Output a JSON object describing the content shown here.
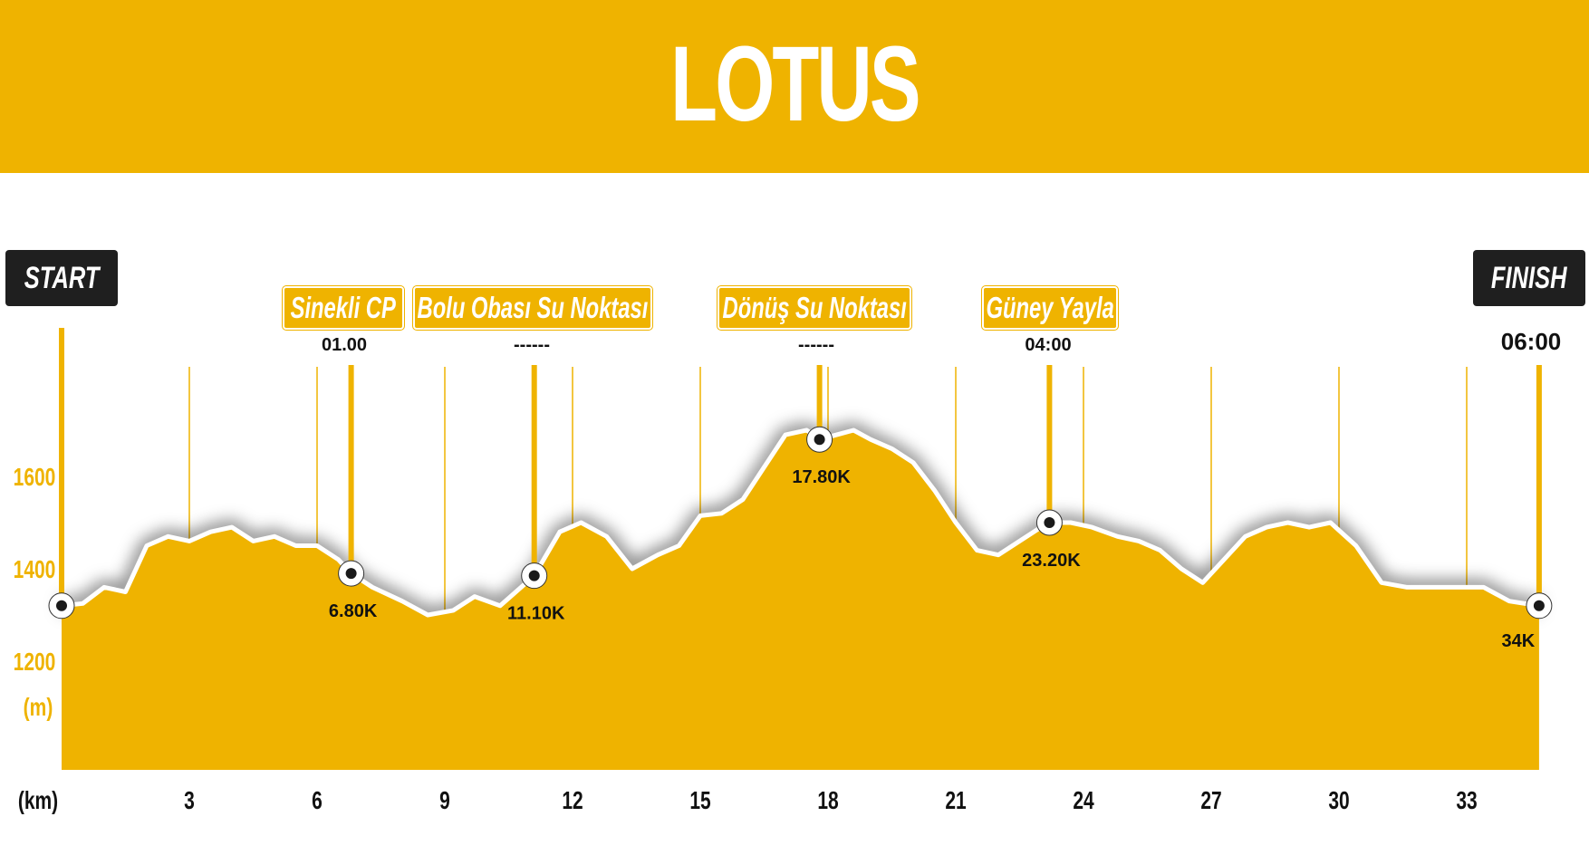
{
  "title": "LOTUS",
  "start_label": "START",
  "finish_label": "FINISH",
  "finish_time": "06:00",
  "colors": {
    "accent": "#efb300",
    "dark": "#1f1f1f",
    "line": "#ffffff",
    "text": "#111111"
  },
  "checkpoints": [
    {
      "name": "Sinekli CP",
      "time": "01.00",
      "km_label": "6.80K",
      "km": 6.8
    },
    {
      "name": "Bolu Obası Su Noktası",
      "time": "------",
      "km_label": "11.10K",
      "km": 11.1
    },
    {
      "name": "Dönüş Su Noktası",
      "time": "------",
      "km_label": "17.80K",
      "km": 17.8
    },
    {
      "name": "Güney Yayla",
      "time": "04:00",
      "km_label": "23.20K",
      "km": 23.2
    }
  ],
  "chart_data": {
    "type": "area",
    "title": "LOTUS",
    "xlabel": "(km)",
    "ylabel": "(m)",
    "x_ticks": [
      3,
      6,
      9,
      12,
      15,
      18,
      21,
      24,
      27,
      30,
      33
    ],
    "y_ticks": [
      1200,
      1400,
      1600
    ],
    "xlim": [
      0,
      34.7
    ],
    "ylim": [
      1000,
      1900
    ],
    "grid": "vertical",
    "start_point": {
      "km": 0,
      "elevation": 1320
    },
    "finish_point": {
      "km": 34.7,
      "elevation": 1320,
      "label": "34K"
    },
    "series": [
      {
        "x": [
          0,
          0.5,
          1.0,
          1.5,
          2.0,
          2.5,
          3.0,
          3.5,
          4.0,
          4.5,
          5.0,
          5.5,
          6.0,
          6.5,
          6.8,
          7.3,
          8.0,
          8.6,
          9.2,
          9.7,
          10.3,
          11.1,
          11.7,
          12.2,
          12.8,
          13.4,
          14.0,
          14.5,
          15.0,
          15.5,
          16.0,
          16.5,
          17.0,
          17.5,
          17.8,
          18.2,
          18.6,
          19.0,
          19.5,
          20.0,
          20.5,
          21.0,
          21.5,
          22.0,
          22.5,
          23.0,
          23.2,
          23.7,
          24.2,
          24.8,
          25.3,
          25.8,
          26.3,
          26.8,
          27.3,
          27.8,
          28.3,
          28.8,
          29.3,
          29.8,
          30.4,
          31.0,
          31.6,
          32.2,
          32.8,
          33.4,
          34.0,
          34.7
        ],
        "y": [
          1320,
          1325,
          1360,
          1350,
          1450,
          1470,
          1460,
          1480,
          1490,
          1460,
          1470,
          1450,
          1450,
          1420,
          1390,
          1360,
          1330,
          1300,
          1310,
          1340,
          1320,
          1385,
          1480,
          1500,
          1470,
          1400,
          1430,
          1450,
          1515,
          1520,
          1550,
          1620,
          1690,
          1700,
          1680,
          1690,
          1700,
          1680,
          1660,
          1630,
          1570,
          1500,
          1440,
          1430,
          1460,
          1490,
          1500,
          1500,
          1490,
          1470,
          1460,
          1440,
          1400,
          1370,
          1420,
          1470,
          1490,
          1500,
          1490,
          1500,
          1450,
          1370,
          1360,
          1360,
          1360,
          1360,
          1330,
          1320
        ]
      }
    ]
  }
}
